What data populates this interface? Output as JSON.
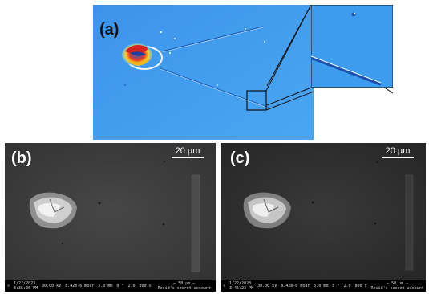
{
  "panels": {
    "a": {
      "label": "(a)"
    },
    "b": {
      "label": "(b)",
      "scale_label": "20 μm",
      "info": {
        "date": "1/22/2023",
        "time": "3:36:06 PM",
        "hv": "30.00 kV",
        "pressure": "8.42e-6 mbar",
        "wd": "5.0 mm",
        "tilt": "0 °",
        "spot": "2.0",
        "mag": "800 x",
        "scalebar": "50 μm",
        "account": "Rosid's secret account"
      }
    },
    "c": {
      "label": "(c)",
      "scale_label": "20 μm",
      "info": {
        "date": "1/22/2023",
        "time": "3:45:23 PM",
        "hv": "30.00 kV",
        "pressure": "8.42e-6 mbar",
        "wd": "5.0 mm",
        "tilt": "0 °",
        "spot": "2.0",
        "mag": "800 x",
        "scalebar": "50 μm",
        "account": "Rosid's secret account"
      }
    }
  },
  "colors": {
    "map_blue": "#2e86e6",
    "map_light": "#5db3f5",
    "sem_gray_b": "#3a3a3a",
    "sem_gray_c": "#2c2c2c"
  }
}
